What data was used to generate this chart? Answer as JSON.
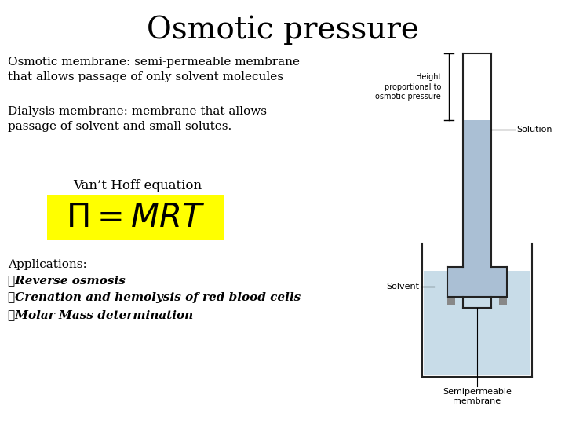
{
  "title": "Osmotic pressure",
  "title_fontsize": 28,
  "bg_color": "#ffffff",
  "text_block1": "Osmotic membrane: semi-permeable membrane\nthat allows passage of only solvent molecules",
  "text_block2": "Dialysis membrane: membrane that allows\npassage of solvent and small solutes.",
  "vanthoff_label": "Van’t Hoff equation",
  "formula_bg": "#ffff00",
  "applications_title": "Applications:",
  "app1": "➤Reverse osmosis",
  "app2": "➤Crenation and hemolysis of red blood cells",
  "app3": "➤Molar Mass determination",
  "diagram_tube_color": "#aabfd4",
  "diagram_tube_dark": "#8099b0",
  "diagram_solvent_color": "#c8dce8",
  "diagram_border_color": "#222222",
  "diagram_label_solution": "Solution",
  "diagram_label_height": "Height\nproportional to\nosmotic pressure",
  "diagram_label_solvent": "Solvent",
  "diagram_label_membrane": "Semipermeable\nmembrane"
}
